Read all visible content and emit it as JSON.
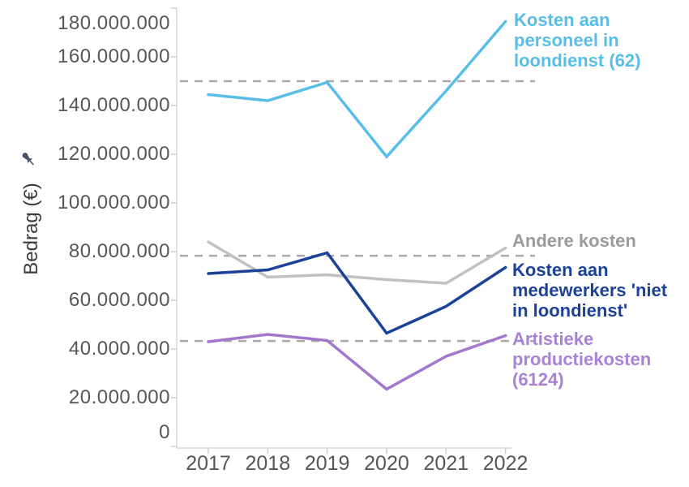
{
  "axis": {
    "y_title": "Bedrag (€)",
    "y_tick_labels": [
      "0",
      "20.000.000",
      "40.000.000",
      "60.000.000",
      "80.000.000",
      "100.000.000",
      "120.000.000",
      "140.000.000",
      "160.000.000",
      "180.000.000"
    ],
    "x_tick_labels": [
      "2017",
      "2018",
      "2019",
      "2020",
      "2021",
      "2022"
    ]
  },
  "icons": {
    "pin": "pinned-axis-icon"
  },
  "chart_data": {
    "type": "line",
    "x": [
      2017,
      2018,
      2019,
      2020,
      2021,
      2022
    ],
    "xlabel": "",
    "ylabel": "Bedrag (€)",
    "ylim": [
      0,
      180000000
    ],
    "grid": false,
    "legend_position": "right of line ends, colored text labels",
    "series": [
      {
        "name": "Kosten aan personeel in loondienst (62)",
        "color": "#58bee8",
        "label_color": "#58bee8",
        "values": [
          144500000,
          142000000,
          149500000,
          119000000,
          146000000,
          174500000
        ]
      },
      {
        "name": "Andere kosten",
        "color": "#c1c1c1",
        "label_color": "#9b9b9b",
        "values": [
          84000000,
          69500000,
          70500000,
          68500000,
          67000000,
          81500000
        ]
      },
      {
        "name": "Kosten aan medewerkers 'niet in loondienst'",
        "color": "#1b4298",
        "label_color": "#1b4298",
        "values": [
          71000000,
          72500000,
          79500000,
          46500000,
          57500000,
          73500000
        ]
      },
      {
        "name": "Artistieke productiekosten (6124)",
        "color": "#a377cc",
        "label_color": "#a982d4",
        "values": [
          43000000,
          46000000,
          43500000,
          23500000,
          37000000,
          45500000
        ]
      }
    ],
    "reference_lines": [
      {
        "value": 150000000,
        "style": "dashed",
        "color": "#a9a9a9"
      },
      {
        "value": 78300000,
        "style": "dashed",
        "color": "#a9a9a9"
      },
      {
        "value": 43300000,
        "style": "dashed",
        "color": "#a9a9a9"
      }
    ]
  }
}
